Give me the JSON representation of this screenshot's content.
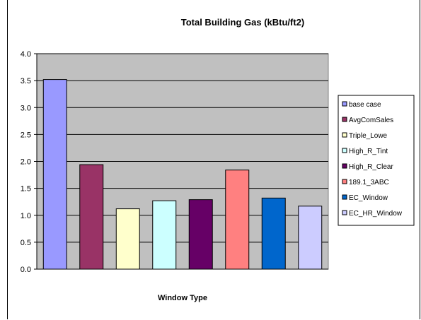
{
  "chart_data": {
    "type": "bar",
    "title": "Total Building Gas (kBtu/ft2)",
    "xlabel": "Window Type",
    "ylabel": "",
    "ylim": [
      0,
      4.0
    ],
    "yticks": [
      "0.0",
      "0.5",
      "1.0",
      "1.5",
      "2.0",
      "2.5",
      "3.0",
      "3.5",
      "4.0"
    ],
    "grid": true,
    "legend_position": "right",
    "plot_background": "#c0c0c0",
    "categories": [
      "base case",
      "AvgComSales",
      "Triple_Lowe",
      "High_R_Tint",
      "High_R_Clear",
      "189.1_3ABC",
      "EC_Window",
      "EC_HR_Window"
    ],
    "values": [
      3.52,
      1.94,
      1.12,
      1.27,
      1.29,
      1.84,
      1.32,
      1.17
    ],
    "colors": [
      "#9999ff",
      "#993366",
      "#ffffcc",
      "#ccffff",
      "#660066",
      "#ff8080",
      "#0066cc",
      "#ccccff"
    ]
  }
}
